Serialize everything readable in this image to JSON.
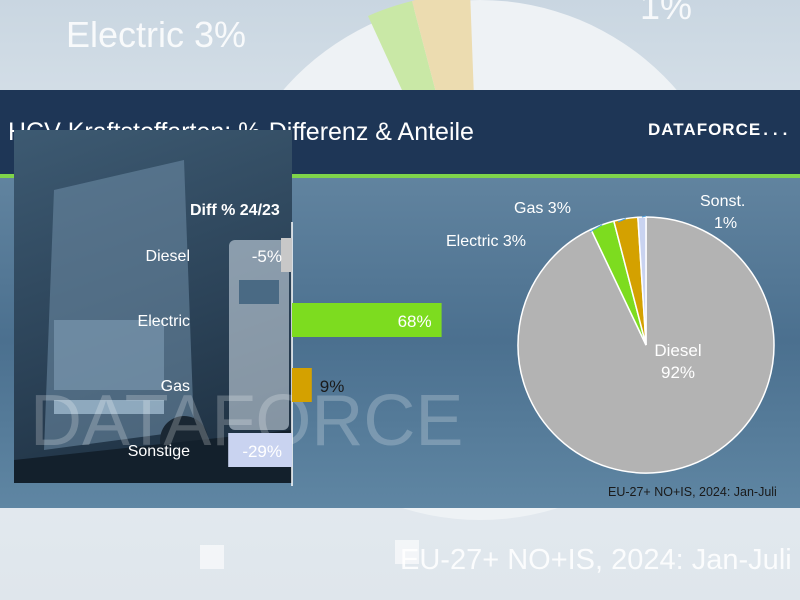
{
  "header": {
    "title": "HCV-Kraftstoffarten: %-Differenz & Anteile",
    "logo_text": "DATAFORCE",
    "logo_dots": "..."
  },
  "background": {
    "label_left": "Electric 3%",
    "label_top_right": "1%",
    "footer": "EU-27+ NO+IS, 2024: Jan-Juli"
  },
  "watermark": "DATAFORCE",
  "chart_data": [
    {
      "type": "bar",
      "orientation": "horizontal",
      "title": "Diff % 24/23",
      "categories": [
        "Diesel",
        "Electric",
        "Gas",
        "Sonstige"
      ],
      "values": [
        -5,
        68,
        9,
        -29
      ],
      "value_labels": [
        "-5%",
        "68%",
        "9%",
        "-29%"
      ],
      "colors": [
        "#c8c8c8",
        "#7ddc1f",
        "#d4a100",
        "#c9d3f0"
      ]
    },
    {
      "type": "pie",
      "slices": [
        {
          "label": "Diesel",
          "value": 92,
          "value_label": "92%",
          "color": "#b3b3b3"
        },
        {
          "label": "Electric",
          "value": 3,
          "value_label": "3%",
          "color": "#7ddc1f"
        },
        {
          "label": "Gas",
          "value": 3,
          "value_label": "3%",
          "color": "#d4a100"
        },
        {
          "label": "Sonst.",
          "value": 1,
          "value_label": "1%",
          "color": "#c9d3f0"
        }
      ],
      "note": "EU-27+ NO+IS, 2024: Jan-Juli"
    }
  ]
}
